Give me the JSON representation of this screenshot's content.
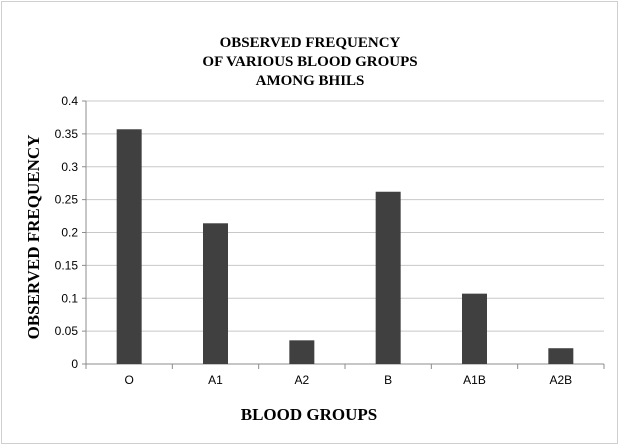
{
  "chart_data": {
    "type": "bar",
    "title_lines": [
      "OBSERVED FREQUENCY",
      "OF VARIOUS BLOOD GROUPS",
      "AMONG BHILS"
    ],
    "xlabel": "BLOOD GROUPS",
    "ylabel": "OBSERVED  FREQUENCY",
    "categories": [
      "O",
      "A1",
      "A2",
      "B",
      "A1B",
      "A2B"
    ],
    "values": [
      0.357,
      0.214,
      0.036,
      0.262,
      0.107,
      0.024
    ],
    "ylim": [
      0,
      0.4
    ],
    "yticks": [
      "0",
      "0.05",
      "0.1",
      "0.15",
      "0.2",
      "0.25",
      "0.3",
      "0.35",
      "0.4"
    ],
    "grid": true,
    "legend": "none",
    "bar_color": "#404040"
  }
}
